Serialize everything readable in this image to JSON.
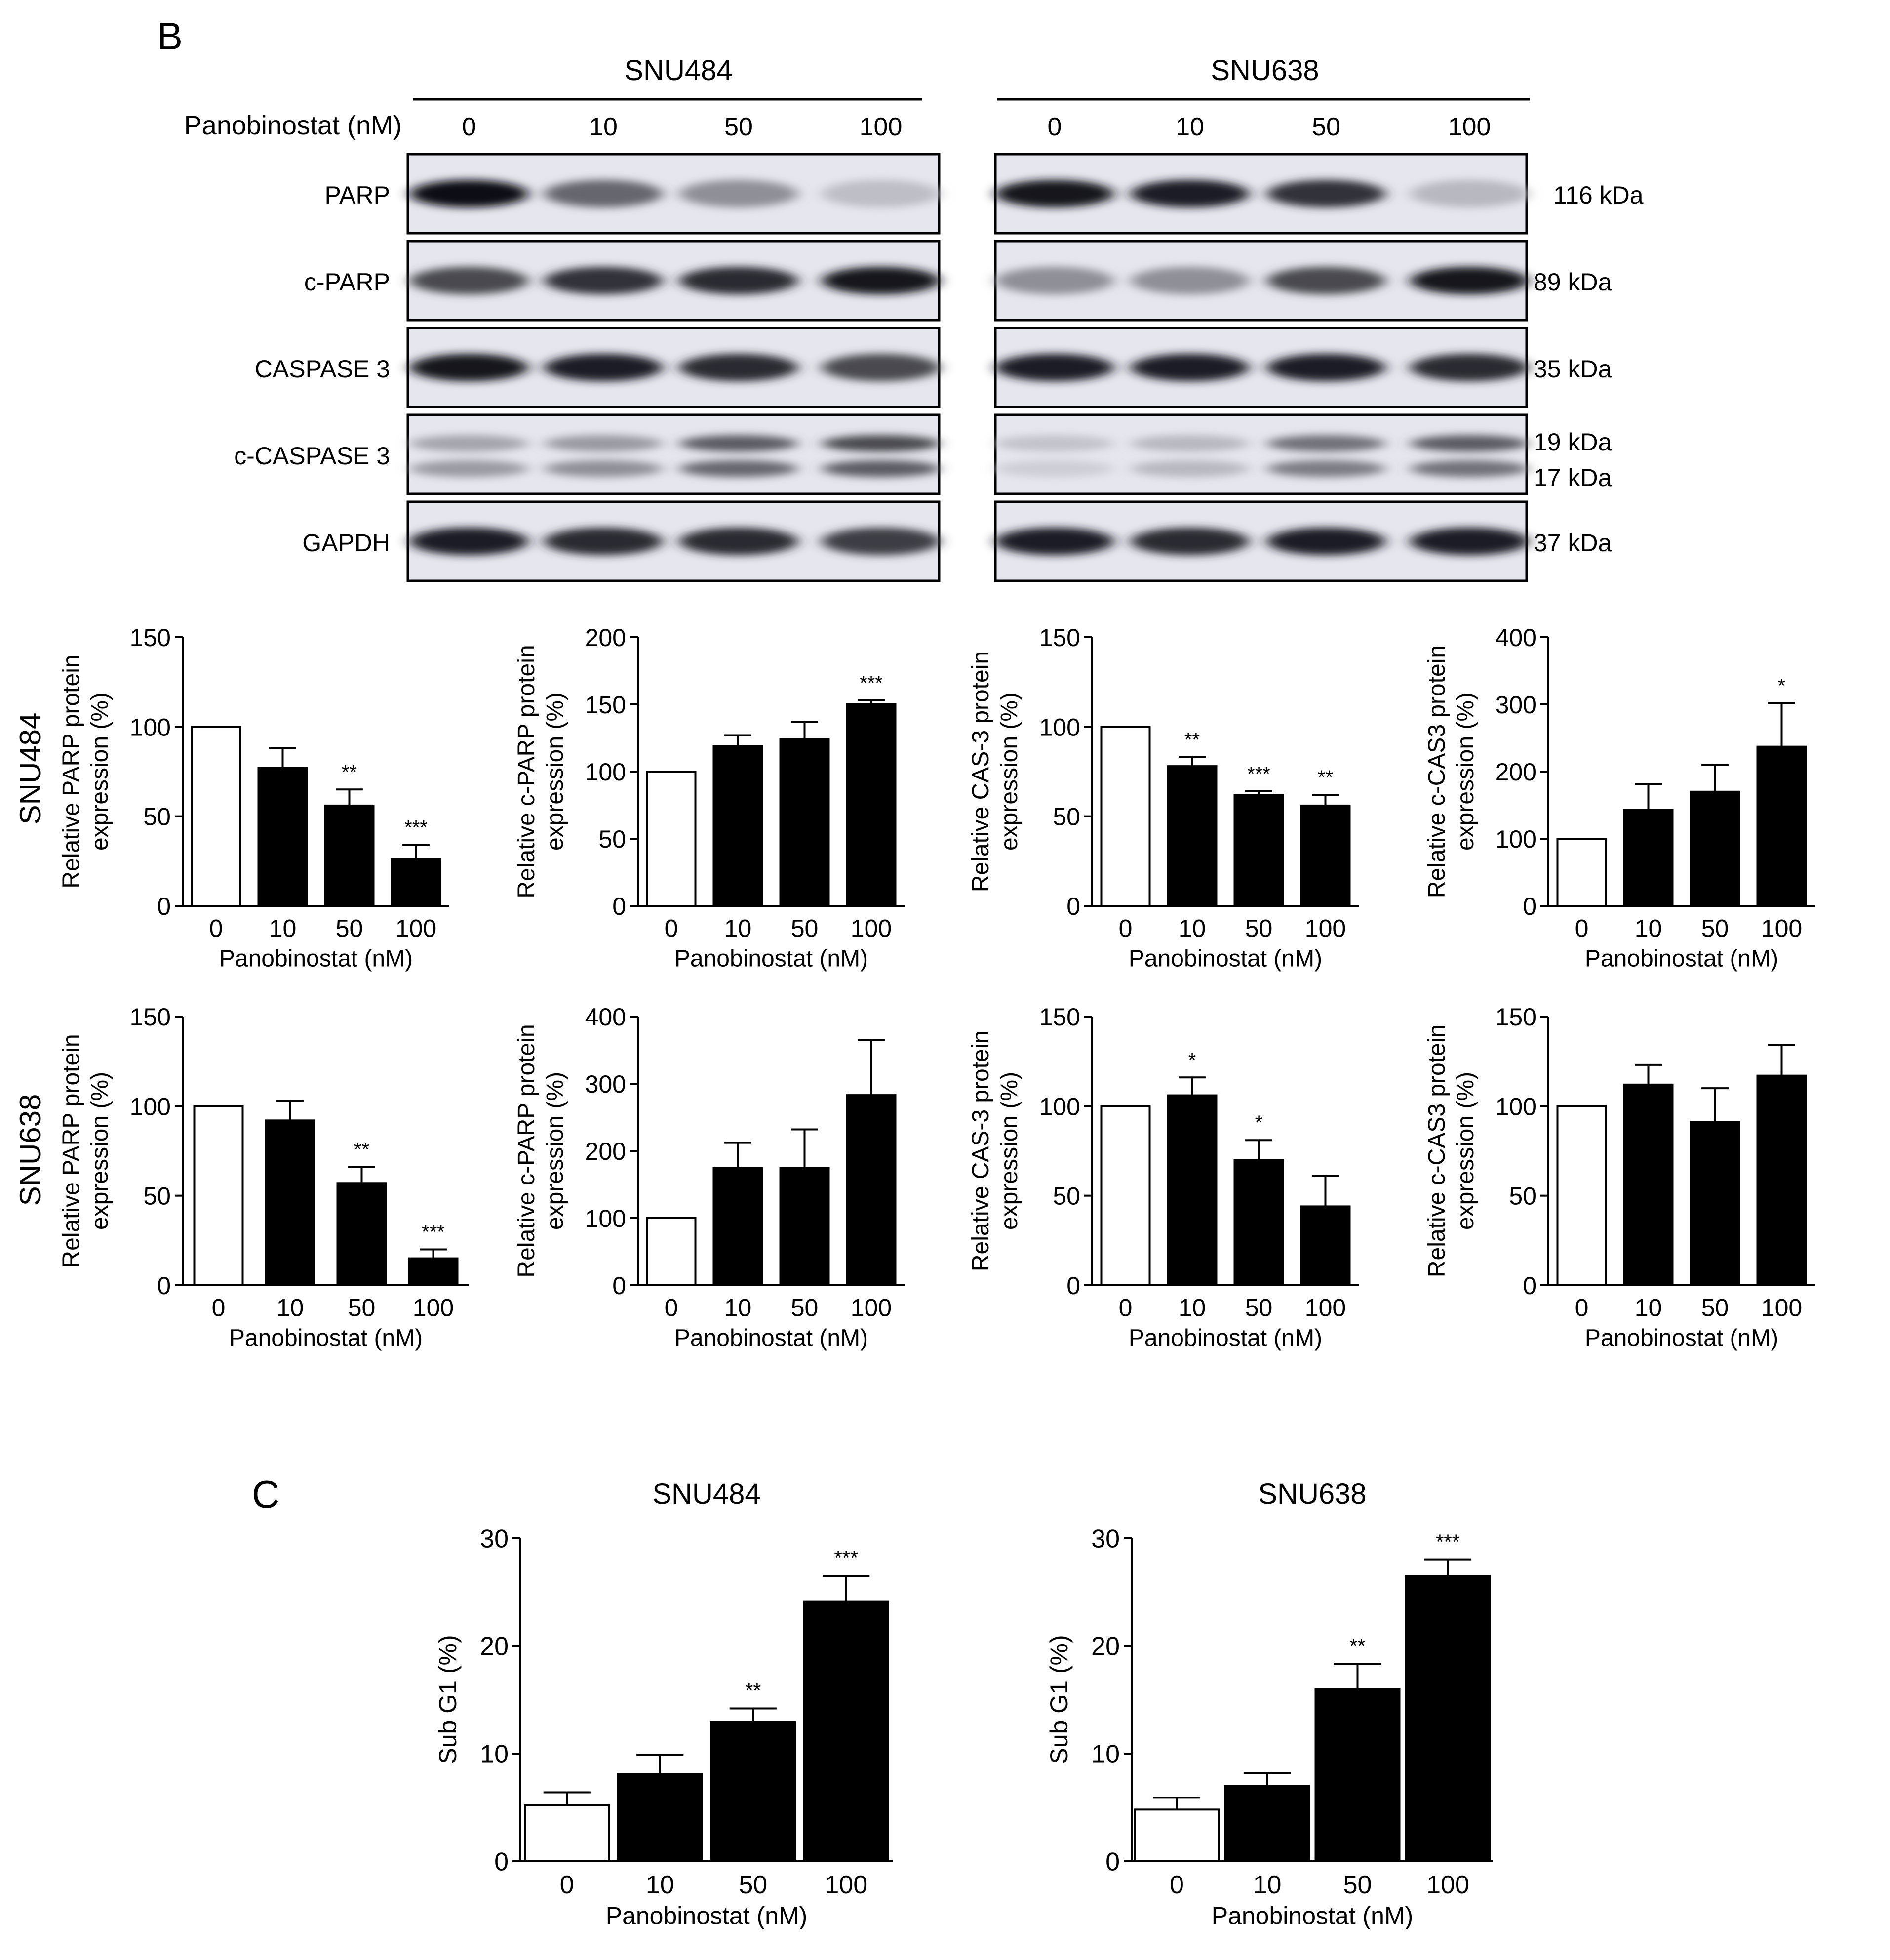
{
  "panel_b": {
    "label": "B",
    "cell_lines": [
      "SNU484",
      "SNU638"
    ],
    "dose_label": "Panobinostat (nM)",
    "doses": [
      "0",
      "10",
      "50",
      "100"
    ],
    "blot_rows": [
      {
        "label": "PARP",
        "kda": [
          "116 kDa"
        ]
      },
      {
        "label": "c-PARP",
        "kda": [
          "89 kDa"
        ]
      },
      {
        "label": "CASPASE 3",
        "kda": [
          "35 kDa"
        ]
      },
      {
        "label": "c-CASPASE 3",
        "kda": [
          "19 kDa",
          "17 kDa"
        ]
      },
      {
        "label": "GAPDH",
        "kda": [
          "37 kDa"
        ]
      }
    ],
    "blot_intensity": {
      "SNU484": {
        "PARP": [
          1.0,
          0.55,
          0.35,
          0.12
        ],
        "c-PARP": [
          0.7,
          0.8,
          0.85,
          0.95
        ],
        "CASPASE 3": [
          0.95,
          0.9,
          0.85,
          0.7
        ],
        "c-CASPASE 3-upper": [
          0.25,
          0.3,
          0.6,
          0.7
        ],
        "c-CASPASE 3-lower": [
          0.3,
          0.35,
          0.55,
          0.6
        ],
        "GAPDH": [
          0.9,
          0.85,
          0.85,
          0.75
        ]
      },
      "SNU638": {
        "PARP": [
          0.95,
          0.9,
          0.8,
          0.15
        ],
        "c-PARP": [
          0.35,
          0.35,
          0.7,
          0.95
        ],
        "CASPASE 3": [
          0.9,
          0.9,
          0.9,
          0.85
        ],
        "c-CASPASE 3-upper": [
          0.1,
          0.15,
          0.5,
          0.6
        ],
        "c-CASPASE 3-lower": [
          0.05,
          0.15,
          0.45,
          0.5
        ],
        "GAPDH": [
          0.9,
          0.85,
          0.9,
          0.9
        ]
      }
    }
  },
  "panel_c": {
    "label": "C"
  },
  "chart_data": [
    {
      "id": "b-snu484-parp",
      "type": "bar",
      "row_label": "SNU484",
      "categories": [
        "0",
        "10",
        "50",
        "100"
      ],
      "values": [
        100,
        77,
        56,
        26
      ],
      "errors": [
        0,
        11,
        9,
        8
      ],
      "sig": [
        "",
        "",
        "**",
        "***"
      ],
      "ylabel": [
        "Relative PARP protein",
        "expression (%)"
      ],
      "xlabel": "Panobinostat (nM)",
      "ylim": [
        0,
        150
      ],
      "yticks": [
        0,
        50,
        100,
        150
      ]
    },
    {
      "id": "b-snu484-cparp",
      "type": "bar",
      "categories": [
        "0",
        "10",
        "50",
        "100"
      ],
      "values": [
        100,
        119,
        124,
        150
      ],
      "errors": [
        0,
        8,
        13,
        3
      ],
      "sig": [
        "",
        "",
        "",
        "***"
      ],
      "ylabel": [
        "Relative c-PARP protein",
        "expression (%)"
      ],
      "xlabel": "Panobinostat (nM)",
      "ylim": [
        0,
        200
      ],
      "yticks": [
        0,
        50,
        100,
        150,
        200
      ]
    },
    {
      "id": "b-snu484-cas3",
      "type": "bar",
      "categories": [
        "0",
        "10",
        "50",
        "100"
      ],
      "values": [
        100,
        78,
        62,
        56
      ],
      "errors": [
        0,
        5,
        2,
        6
      ],
      "sig": [
        "",
        "**",
        "***",
        "**"
      ],
      "ylabel": [
        "Relative CAS-3 protein",
        "expression (%)"
      ],
      "xlabel": "Panobinostat (nM)",
      "ylim": [
        0,
        150
      ],
      "yticks": [
        0,
        50,
        100,
        150
      ]
    },
    {
      "id": "b-snu484-ccas3",
      "type": "bar",
      "categories": [
        "0",
        "10",
        "50",
        "100"
      ],
      "values": [
        100,
        143,
        170,
        237
      ],
      "errors": [
        0,
        38,
        40,
        65
      ],
      "sig": [
        "",
        "",
        "",
        "*"
      ],
      "ylabel": [
        "Relative c-CAS3 protein",
        "expression (%)"
      ],
      "xlabel": "Panobinostat (nM)",
      "ylim": [
        0,
        400
      ],
      "yticks": [
        0,
        100,
        200,
        300,
        400
      ]
    },
    {
      "id": "b-snu638-parp",
      "type": "bar",
      "row_label": "SNU638",
      "categories": [
        "0",
        "10",
        "50",
        "100"
      ],
      "values": [
        100,
        92,
        57,
        15
      ],
      "errors": [
        0,
        11,
        9,
        5
      ],
      "sig": [
        "",
        "",
        "**",
        "***"
      ],
      "ylabel": [
        "Relative PARP protein",
        "expression (%)"
      ],
      "xlabel": "Panobinostat (nM)",
      "ylim": [
        0,
        150
      ],
      "yticks": [
        0,
        50,
        100,
        150
      ]
    },
    {
      "id": "b-snu638-cparp",
      "type": "bar",
      "categories": [
        "0",
        "10",
        "50",
        "100"
      ],
      "values": [
        100,
        175,
        175,
        283
      ],
      "errors": [
        0,
        37,
        57,
        82
      ],
      "sig": [
        "",
        "",
        "",
        ""
      ],
      "ylabel": [
        "Relative c-PARP protein",
        "expression (%)"
      ],
      "xlabel": "Panobinostat (nM)",
      "ylim": [
        0,
        400
      ],
      "yticks": [
        0,
        100,
        200,
        300,
        400
      ]
    },
    {
      "id": "b-snu638-cas3",
      "type": "bar",
      "categories": [
        "0",
        "10",
        "50",
        "100"
      ],
      "values": [
        100,
        106,
        70,
        44
      ],
      "errors": [
        0,
        10,
        11,
        17
      ],
      "sig": [
        "",
        "*",
        "*",
        ""
      ],
      "ylabel": [
        "Relative CAS-3 protein",
        "expression (%)"
      ],
      "xlabel": "Panobinostat (nM)",
      "ylim": [
        0,
        150
      ],
      "yticks": [
        0,
        50,
        100,
        150
      ]
    },
    {
      "id": "b-snu638-ccas3",
      "type": "bar",
      "categories": [
        "0",
        "10",
        "50",
        "100"
      ],
      "values": [
        100,
        112,
        91,
        117
      ],
      "errors": [
        0,
        11,
        19,
        17
      ],
      "sig": [
        "",
        "",
        "",
        ""
      ],
      "ylabel": [
        "Relative c-CAS3 protein",
        "expression (%)"
      ],
      "xlabel": "Panobinostat (nM)",
      "ylim": [
        0,
        150
      ],
      "yticks": [
        0,
        50,
        100,
        150
      ]
    },
    {
      "id": "c-snu484",
      "type": "bar",
      "title": "SNU484",
      "categories": [
        "0",
        "10",
        "50",
        "100"
      ],
      "values": [
        5.2,
        8.1,
        12.9,
        24.1
      ],
      "errors": [
        1.2,
        1.8,
        1.3,
        2.4
      ],
      "sig": [
        "",
        "",
        "**",
        "***"
      ],
      "ylabel": [
        "Sub G1 (%)"
      ],
      "xlabel": "Panobinostat (nM)",
      "ylim": [
        0,
        30
      ],
      "yticks": [
        0,
        10,
        20,
        30
      ]
    },
    {
      "id": "c-snu638",
      "type": "bar",
      "title": "SNU638",
      "categories": [
        "0",
        "10",
        "50",
        "100"
      ],
      "values": [
        4.8,
        7.0,
        16.0,
        26.5
      ],
      "errors": [
        1.1,
        1.2,
        2.3,
        1.5
      ],
      "sig": [
        "",
        "",
        "**",
        "***"
      ],
      "ylabel": [
        "Sub G1 (%)"
      ],
      "xlabel": "Panobinostat (nM)",
      "ylim": [
        0,
        30
      ],
      "yticks": [
        0,
        10,
        20,
        30
      ]
    }
  ]
}
